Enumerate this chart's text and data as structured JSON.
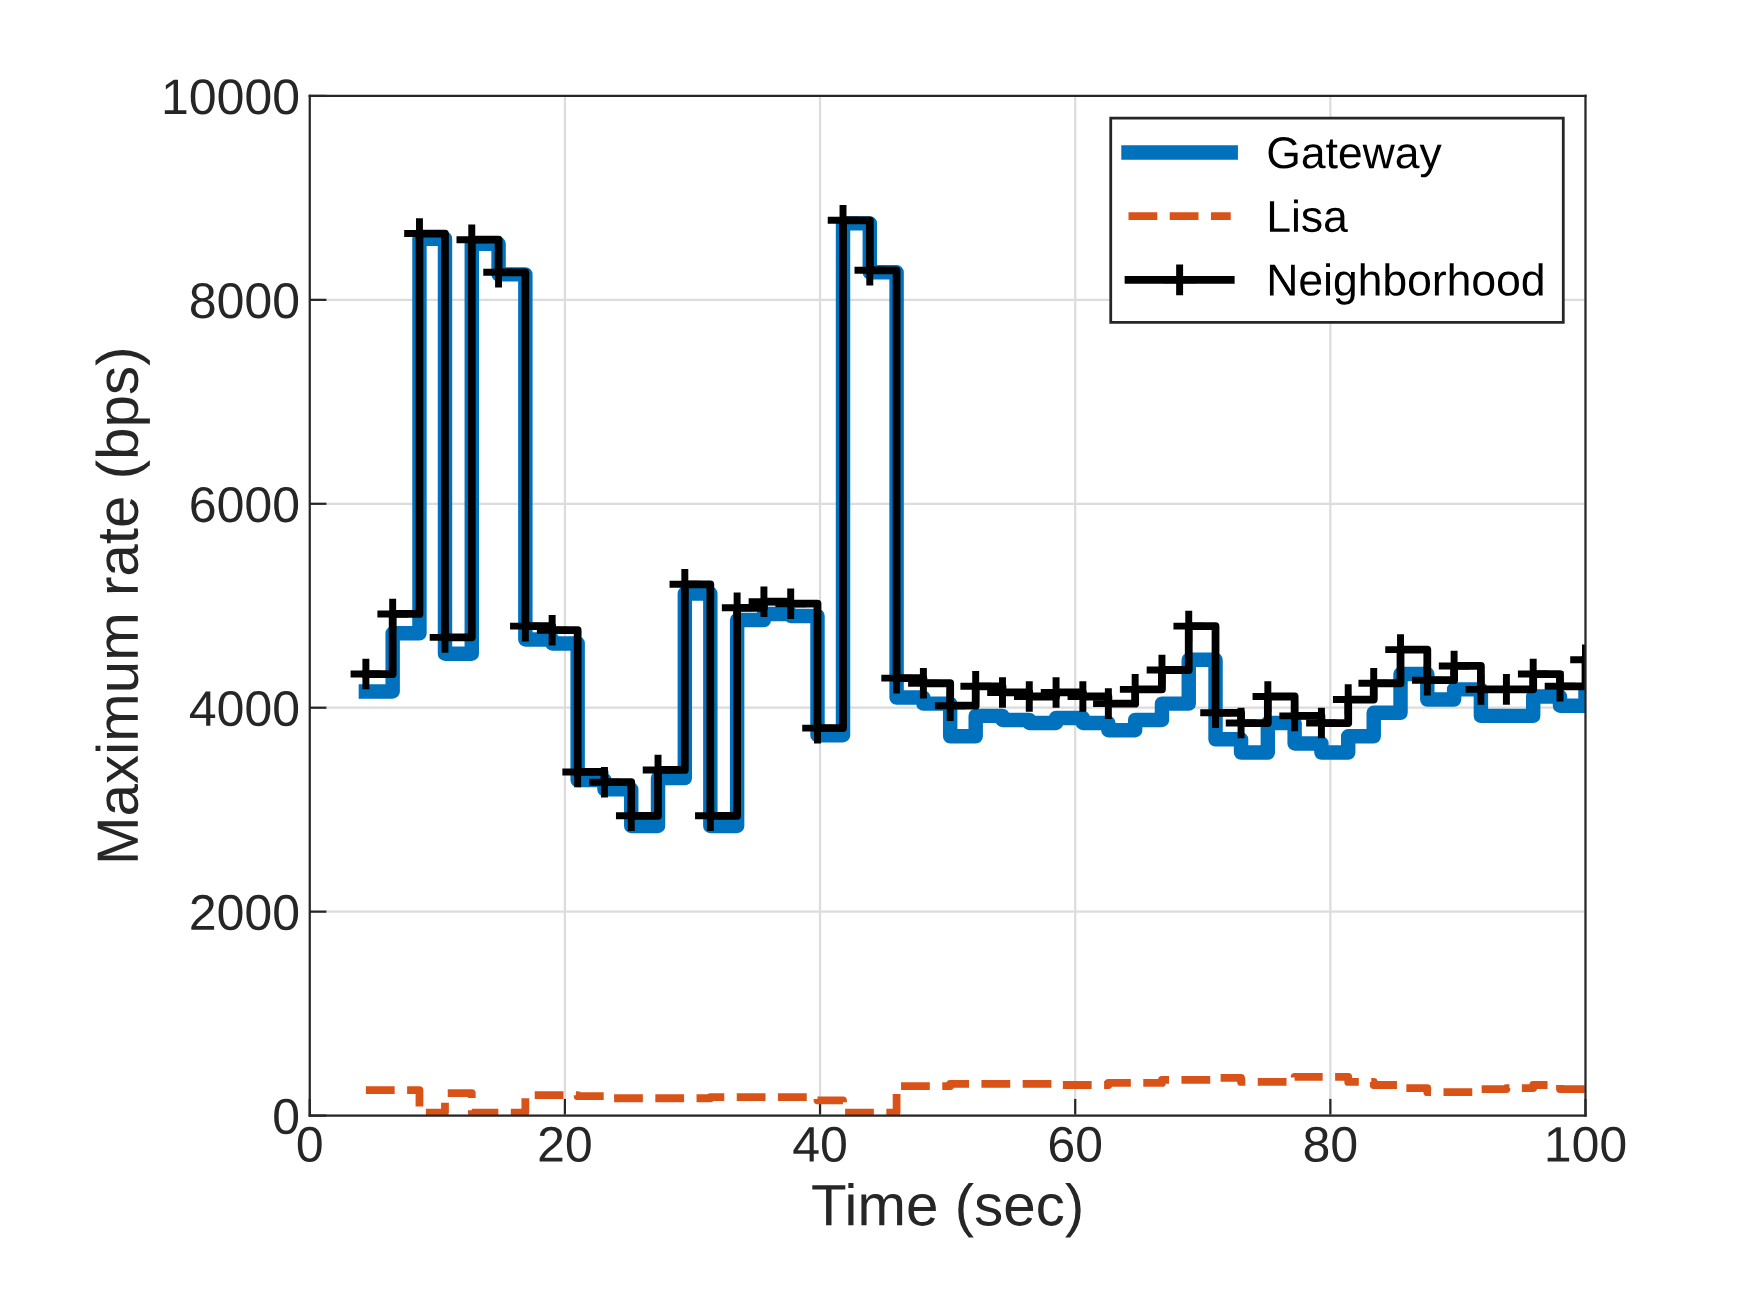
{
  "chart_data": {
    "type": "step",
    "xlabel": "Time (sec)",
    "ylabel": "Maximum rate (bps)",
    "x": [
      4.4,
      6.5,
      8.6,
      10.6,
      12.7,
      14.8,
      16.9,
      19.0,
      21.0,
      23.1,
      25.2,
      27.3,
      29.4,
      31.4,
      33.5,
      35.6,
      37.7,
      39.8,
      41.8,
      43.9,
      46.0,
      48.1,
      50.2,
      52.2,
      54.3,
      56.4,
      58.5,
      60.6,
      62.6,
      64.7,
      66.8,
      68.9,
      71.0,
      73.0,
      75.1,
      77.2,
      79.3,
      81.4,
      83.4,
      85.5,
      87.6,
      89.7,
      91.8,
      93.8,
      95.9,
      98.0,
      100.0
    ],
    "series": [
      {
        "name": "Gateway",
        "color": "#0072bd",
        "line_style": "solid",
        "marker": "none",
        "values": [
          4160,
          4730,
          8600,
          4530,
          8550,
          8250,
          4670,
          4630,
          3290,
          3200,
          2840,
          3310,
          5120,
          2840,
          4860,
          4920,
          4900,
          3730,
          8750,
          8270,
          4100,
          4040,
          3720,
          3920,
          3880,
          3850,
          3900,
          3850,
          3780,
          3880,
          4040,
          4470,
          3690,
          3560,
          3850,
          3650,
          3560,
          3720,
          3950,
          4330,
          4080,
          4180,
          3920,
          3920,
          4110,
          4020,
          4140
        ]
      },
      {
        "name": "Lisa",
        "color": "#d95319",
        "line_style": "dashed",
        "marker": "none",
        "values": [
          250,
          250,
          30,
          220,
          30,
          30,
          200,
          200,
          190,
          170,
          170,
          170,
          170,
          180,
          180,
          180,
          180,
          150,
          30,
          30,
          290,
          290,
          310,
          310,
          310,
          310,
          300,
          300,
          320,
          320,
          350,
          350,
          370,
          330,
          330,
          380,
          380,
          330,
          300,
          270,
          230,
          230,
          260,
          270,
          300,
          260,
          260
        ]
      },
      {
        "name": "Neighborhood",
        "color": "#000000",
        "line_style": "solid",
        "marker": "cross",
        "values": [
          4330,
          4920,
          8650,
          4690,
          8590,
          8270,
          4800,
          4760,
          3370,
          3270,
          2940,
          3390,
          5210,
          2940,
          4980,
          5040,
          5020,
          3800,
          8780,
          8290,
          4290,
          4240,
          4020,
          4210,
          4150,
          4110,
          4150,
          4110,
          4040,
          4180,
          4370,
          4800,
          3950,
          3850,
          4110,
          3920,
          3850,
          4080,
          4240,
          4570,
          4270,
          4410,
          4180,
          4180,
          4330,
          4210,
          4470
        ]
      }
    ],
    "xlim": [
      0,
      100
    ],
    "xticks": [
      0,
      20,
      40,
      60,
      80,
      100
    ],
    "ylim": [
      0,
      10000
    ],
    "yticks": [
      0,
      2000,
      4000,
      6000,
      8000,
      10000
    ],
    "grid": true,
    "legend": "top right"
  }
}
